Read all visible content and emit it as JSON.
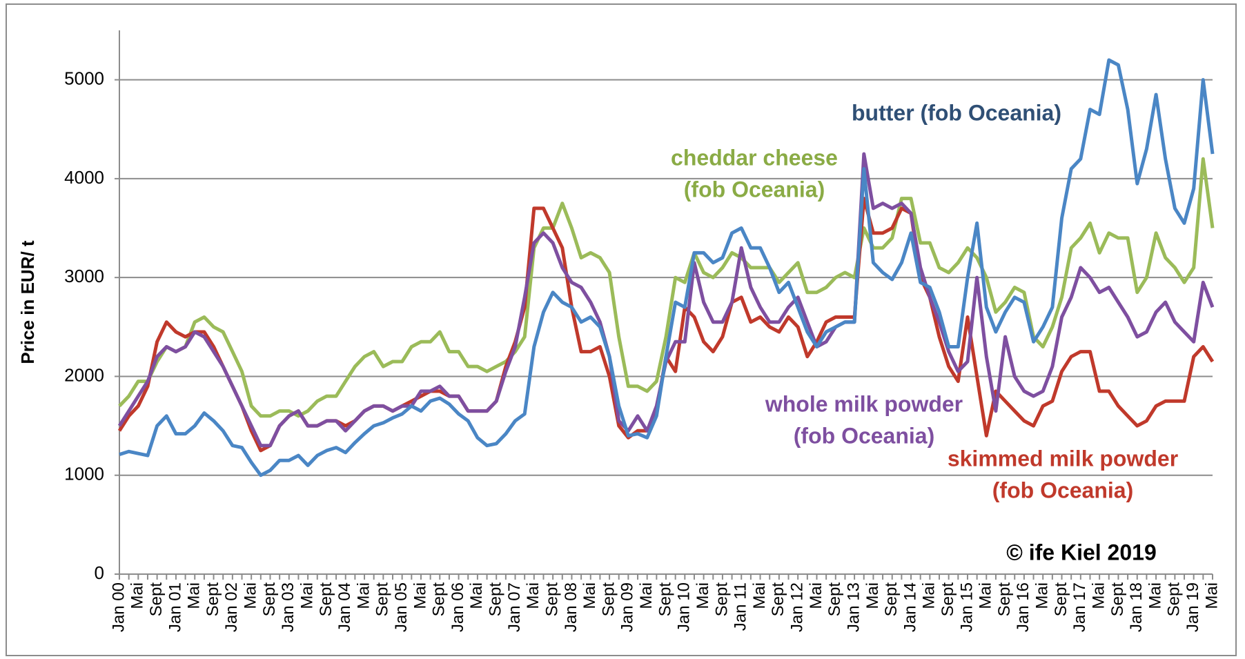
{
  "chart_data": {
    "type": "line",
    "y_label": "Price in EUR/ t",
    "ylim": [
      0,
      5500
    ],
    "yticks": [
      0,
      1000,
      2000,
      3000,
      4000,
      5000
    ],
    "grid": true,
    "categories": [
      "Jan 00",
      null,
      "Mai",
      null,
      "Sept",
      null,
      "Jan 01",
      null,
      "Mai",
      null,
      "Sept",
      null,
      "Jan 02",
      null,
      "Mai",
      null,
      "Sept",
      null,
      "Jan 03",
      null,
      "Mai",
      null,
      "Sept",
      null,
      "Jan 04",
      null,
      "Mai",
      null,
      "Sept",
      null,
      "Jan 05",
      null,
      "Mai",
      null,
      "Sept",
      null,
      "Jan 06",
      null,
      "Mai",
      null,
      "Sept",
      null,
      "Jan 07",
      null,
      "Mai",
      null,
      "Sept",
      null,
      "Jan 08",
      null,
      "Mai",
      null,
      "Sept",
      null,
      "Jan 09",
      null,
      "Mai",
      null,
      "Sept",
      null,
      "Jan 10",
      null,
      "Mai",
      null,
      "Sept",
      null,
      "Jan 11",
      null,
      "Mai",
      null,
      "Sept",
      null,
      "Jan 12",
      null,
      "Mai",
      null,
      "Sept",
      null,
      "Jan 13",
      null,
      "Mai",
      null,
      "Sept",
      null,
      "Jan 14",
      null,
      "Mai",
      null,
      "Sept",
      null,
      "Jan 15",
      null,
      "Mai",
      null,
      "Sept",
      null,
      "Jan 16",
      null,
      "Mai",
      null,
      "Sept",
      null,
      "Jan 17",
      null,
      "Mai",
      null,
      "Sept",
      null,
      "Jan 18",
      null,
      "Mai",
      null,
      "Sept",
      null,
      "Jan 19",
      null,
      "Mai"
    ],
    "series": [
      {
        "name": "cheddar cheese",
        "color": "#9bbb59",
        "values": [
          1700,
          1800,
          1950,
          1950,
          2150,
          2300,
          2250,
          2300,
          2550,
          2600,
          2500,
          2450,
          2250,
          2050,
          1700,
          1600,
          1600,
          1650,
          1650,
          1600,
          1650,
          1750,
          1800,
          1800,
          1950,
          2100,
          2200,
          2250,
          2100,
          2150,
          2150,
          2300,
          2350,
          2350,
          2450,
          2250,
          2250,
          2100,
          2100,
          2050,
          2100,
          2150,
          2250,
          2400,
          3300,
          3500,
          3500,
          3750,
          3500,
          3200,
          3250,
          3200,
          3050,
          2400,
          1900,
          1900,
          1850,
          1950,
          2400,
          3000,
          2950,
          3250,
          3050,
          3000,
          3100,
          3250,
          3200,
          3100,
          3100,
          3100,
          2950,
          3050,
          3150,
          2850,
          2850,
          2900,
          3000,
          3050,
          3000,
          3500,
          3300,
          3300,
          3400,
          3800,
          3800,
          3350,
          3350,
          3100,
          3050,
          3150,
          3300,
          3200,
          3000,
          2650,
          2750,
          2900,
          2850,
          2400,
          2300,
          2500,
          2800,
          3300,
          3400,
          3550,
          3250,
          3450,
          3400,
          3400,
          2850,
          3000,
          3450,
          3200,
          3100,
          2950,
          3100,
          4200,
          3500
        ]
      },
      {
        "name": "skimmed milk powder",
        "color": "#c0392b",
        "values": [
          1450,
          1600,
          1700,
          1900,
          2350,
          2550,
          2450,
          2400,
          2450,
          2450,
          2300,
          2100,
          1900,
          1700,
          1450,
          1250,
          1300,
          1500,
          1600,
          1650,
          1500,
          1500,
          1550,
          1550,
          1500,
          1550,
          1650,
          1700,
          1700,
          1650,
          1700,
          1750,
          1800,
          1850,
          1850,
          1800,
          1800,
          1650,
          1650,
          1650,
          1750,
          2100,
          2350,
          2700,
          3700,
          3700,
          3500,
          3300,
          2700,
          2250,
          2250,
          2300,
          2000,
          1500,
          1380,
          1450,
          1450,
          1650,
          2200,
          2050,
          2700,
          2600,
          2350,
          2250,
          2400,
          2750,
          2800,
          2550,
          2600,
          2500,
          2450,
          2600,
          2500,
          2200,
          2350,
          2550,
          2600,
          2600,
          2600,
          3800,
          3450,
          3450,
          3500,
          3700,
          3650,
          3000,
          2800,
          2400,
          2100,
          1950,
          2600,
          2000,
          1400,
          1850,
          1750,
          1650,
          1550,
          1500,
          1700,
          1750,
          2050,
          2200,
          2250,
          2250,
          1850,
          1850,
          1700,
          1600,
          1500,
          1550,
          1700,
          1750,
          1750,
          1750,
          2200,
          2300,
          2150
        ]
      },
      {
        "name": "whole milk powder",
        "color": "#7e4fa0",
        "values": [
          1500,
          1650,
          1800,
          1950,
          2200,
          2300,
          2250,
          2300,
          2450,
          2400,
          2250,
          2100,
          1900,
          1700,
          1500,
          1300,
          1300,
          1500,
          1600,
          1650,
          1500,
          1500,
          1550,
          1550,
          1450,
          1550,
          1650,
          1700,
          1700,
          1650,
          1700,
          1700,
          1850,
          1850,
          1900,
          1800,
          1800,
          1650,
          1650,
          1650,
          1750,
          2050,
          2300,
          2800,
          3350,
          3450,
          3350,
          3100,
          2950,
          2900,
          2750,
          2550,
          2200,
          1550,
          1450,
          1600,
          1450,
          1700,
          2150,
          2350,
          2350,
          3150,
          2750,
          2550,
          2550,
          2750,
          3300,
          2900,
          2700,
          2550,
          2550,
          2700,
          2800,
          2550,
          2300,
          2350,
          2500,
          2550,
          2550,
          4250,
          3700,
          3750,
          3700,
          3750,
          3650,
          3100,
          2800,
          2550,
          2250,
          2050,
          2150,
          3000,
          2200,
          1650,
          2400,
          2000,
          1850,
          1800,
          1850,
          2100,
          2600,
          2800,
          3100,
          3000,
          2850,
          2900,
          2750,
          2600,
          2400,
          2450,
          2650,
          2750,
          2550,
          2450,
          2350,
          2950,
          2700
        ]
      },
      {
        "name": "butter",
        "color": "#4a86c5",
        "values": [
          1210,
          1240,
          1220,
          1200,
          1500,
          1600,
          1420,
          1420,
          1500,
          1630,
          1550,
          1450,
          1300,
          1280,
          1130,
          1000,
          1050,
          1150,
          1150,
          1200,
          1100,
          1200,
          1250,
          1280,
          1230,
          1330,
          1420,
          1500,
          1530,
          1580,
          1620,
          1700,
          1650,
          1750,
          1780,
          1720,
          1620,
          1550,
          1380,
          1300,
          1320,
          1420,
          1550,
          1620,
          2300,
          2650,
          2850,
          2750,
          2700,
          2550,
          2600,
          2500,
          2200,
          1700,
          1400,
          1420,
          1380,
          1600,
          2200,
          2750,
          2700,
          3250,
          3250,
          3150,
          3200,
          3450,
          3500,
          3300,
          3300,
          3100,
          2850,
          2950,
          2700,
          2450,
          2300,
          2450,
          2500,
          2550,
          2550,
          4100,
          3150,
          3050,
          2980,
          3150,
          3450,
          2950,
          2900,
          2650,
          2300,
          2300,
          3000,
          3550,
          2700,
          2450,
          2650,
          2800,
          2750,
          2350,
          2500,
          2700,
          3600,
          4100,
          4200,
          4700,
          4650,
          5200,
          5150,
          4700,
          3950,
          4300,
          4850,
          4200,
          3700,
          3550,
          3900,
          5000,
          4250
        ]
      }
    ],
    "annotations": [
      {
        "text": [
          "butter (fob Oceania)"
        ],
        "color": "#2f4f75"
      },
      {
        "text": [
          "cheddar cheese",
          "(fob Oceania)"
        ],
        "color": "#8aab45"
      },
      {
        "text": [
          "whole milk powder",
          "(fob Oceania)"
        ],
        "color": "#7e4fa0"
      },
      {
        "text": [
          "skimmed milk powder",
          "(fob Oceania)"
        ],
        "color": "#c0392b"
      },
      {
        "text": [
          "© ife Kiel 2019"
        ],
        "color": "#000000"
      }
    ]
  }
}
